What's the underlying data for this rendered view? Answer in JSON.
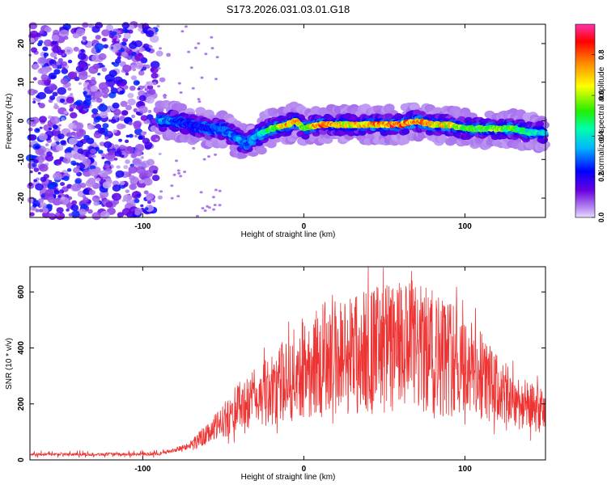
{
  "title": "S173.2026.031.03.01.G18",
  "chart_data": [
    {
      "type": "heatmap",
      "name": "spectrogram",
      "xlabel": "Height of straight line (km)",
      "ylabel": "Frequency (Hz)",
      "xlim": [
        -170,
        150
      ],
      "ylim": [
        -25,
        25
      ],
      "xticks": [
        -100,
        0,
        100
      ],
      "xtick_labels": [
        "-100",
        "0",
        "100"
      ],
      "yticks": [
        -20,
        -10,
        0,
        10,
        20
      ],
      "ytick_labels": [
        "-20",
        "-10",
        "0",
        "10",
        "20"
      ],
      "noise_region_x": [
        -170,
        -92
      ],
      "ridge": {
        "x": [
          -90,
          -80,
          -70,
          -60,
          -50,
          -40,
          -35,
          -30,
          -20,
          -10,
          -5,
          0,
          10,
          20,
          30,
          40,
          50,
          60,
          70,
          80,
          90,
          100,
          110,
          120,
          130,
          140,
          150
        ],
        "freq": [
          0,
          0,
          -1,
          -2,
          -2,
          -5,
          -6,
          -4,
          -2,
          -1,
          0,
          -2,
          -1,
          -1,
          -1,
          -1,
          -1,
          -1,
          0,
          -1,
          -1,
          -2,
          -2,
          -2,
          -2,
          -3,
          -3
        ],
        "amplitude": [
          0.35,
          0.3,
          0.25,
          0.25,
          0.3,
          0.35,
          0.3,
          0.35,
          0.55,
          0.75,
          0.8,
          0.6,
          0.85,
          0.75,
          0.7,
          0.75,
          0.8,
          0.85,
          0.8,
          0.75,
          0.7,
          0.55,
          0.55,
          0.6,
          0.55,
          0.45,
          0.4
        ]
      },
      "colorbar": {
        "label": "Normalized spectral amplitude",
        "range": [
          0.0,
          0.95
        ],
        "ticks": [
          0.0,
          0.2,
          0.4,
          0.6,
          0.8
        ],
        "tick_labels": [
          "0.0",
          "0.2",
          "0.4",
          "0.6",
          "0.8"
        ]
      }
    },
    {
      "type": "line",
      "name": "snr",
      "xlabel": "Height of straight line (km)",
      "ylabel": "SNR (10 * v/v)",
      "xlim": [
        -170,
        150
      ],
      "ylim": [
        0,
        690
      ],
      "xticks": [
        -100,
        0,
        100
      ],
      "xtick_labels": [
        "-100",
        "0",
        "100"
      ],
      "yticks": [
        0,
        200,
        400,
        600
      ],
      "ytick_labels": [
        "0",
        "200",
        "400",
        "600"
      ],
      "color": "#ee3333",
      "envelope": {
        "x": [
          -170,
          -100,
          -90,
          -80,
          -70,
          -60,
          -50,
          -40,
          -30,
          -20,
          -10,
          0,
          10,
          20,
          30,
          40,
          50,
          60,
          70,
          80,
          90,
          100,
          110,
          120,
          130,
          140,
          150
        ],
        "y": [
          20,
          20,
          22,
          35,
          55,
          90,
          140,
          190,
          220,
          250,
          290,
          330,
          350,
          370,
          380,
          390,
          400,
          400,
          395,
          385,
          370,
          340,
          300,
          250,
          215,
          190,
          170
        ]
      },
      "peak": {
        "x": 40,
        "y": 690
      }
    }
  ]
}
